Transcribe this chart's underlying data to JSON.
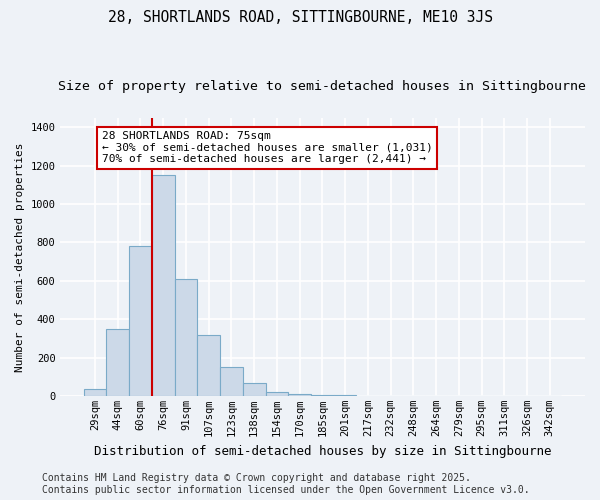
{
  "title": "28, SHORTLANDS ROAD, SITTINGBOURNE, ME10 3JS",
  "subtitle": "Size of property relative to semi-detached houses in Sittingbourne",
  "xlabel": "Distribution of semi-detached houses by size in Sittingbourne",
  "ylabel": "Number of semi-detached properties",
  "categories": [
    "29sqm",
    "44sqm",
    "60sqm",
    "76sqm",
    "91sqm",
    "107sqm",
    "123sqm",
    "138sqm",
    "154sqm",
    "170sqm",
    "185sqm",
    "201sqm",
    "217sqm",
    "232sqm",
    "248sqm",
    "264sqm",
    "279sqm",
    "295sqm",
    "311sqm",
    "326sqm",
    "342sqm"
  ],
  "values": [
    35,
    350,
    780,
    1150,
    610,
    320,
    150,
    65,
    20,
    10,
    5,
    3,
    2,
    0,
    0,
    0,
    0,
    0,
    0,
    0,
    0
  ],
  "bar_color": "#ccd9e8",
  "bar_edge_color": "#7aaac8",
  "red_line_index": 3,
  "annotation_title": "28 SHORTLANDS ROAD: 75sqm",
  "annotation_line1": "← 30% of semi-detached houses are smaller (1,031)",
  "annotation_line2": "70% of semi-detached houses are larger (2,441) →",
  "annotation_box_facecolor": "#ffffff",
  "annotation_box_edgecolor": "#cc0000",
  "red_line_color": "#cc0000",
  "footer_line1": "Contains HM Land Registry data © Crown copyright and database right 2025.",
  "footer_line2": "Contains public sector information licensed under the Open Government Licence v3.0.",
  "ylim": [
    0,
    1450
  ],
  "yticks": [
    0,
    200,
    400,
    600,
    800,
    1000,
    1200,
    1400
  ],
  "background_color": "#eef2f7",
  "grid_color": "#ffffff",
  "title_fontsize": 10.5,
  "subtitle_fontsize": 9.5,
  "xlabel_fontsize": 9,
  "ylabel_fontsize": 8,
  "tick_fontsize": 7.5,
  "footer_fontsize": 7,
  "annotation_fontsize": 8
}
